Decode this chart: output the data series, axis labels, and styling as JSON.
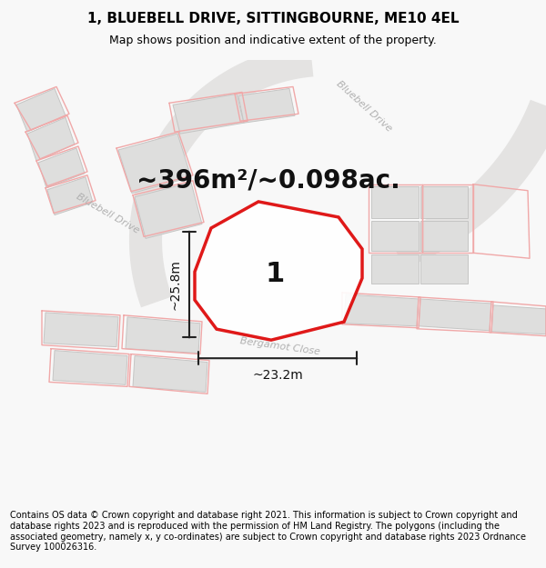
{
  "title": "1, BLUEBELL DRIVE, SITTINGBOURNE, ME10 4EL",
  "subtitle": "Map shows position and indicative extent of the property.",
  "area_text": "~396m²/~0.098ac.",
  "dimension_width": "~23.2m",
  "dimension_height": "~25.8m",
  "property_number": "1",
  "footer": "Contains OS data © Crown copyright and database right 2021. This information is subject to Crown copyright and database rights 2023 and is reproduced with the permission of HM Land Registry. The polygons (including the associated geometry, namely x, y co-ordinates) are subject to Crown copyright and database rights 2023 Ordnance Survey 100026316.",
  "bg_color": "#f8f8f8",
  "map_bg": "#f2f1f0",
  "highlight_color": "#dd0000",
  "plot_line_color": "#f0b0b0",
  "building_fill": "#e0e0e0",
  "building_edge": "#cccccc",
  "road_fill": "#e8e7e6",
  "road_label_color": "#b0b0b0",
  "dim_line_color": "#222222",
  "title_fontsize": 11,
  "subtitle_fontsize": 9,
  "area_fontsize": 20,
  "dim_fontsize": 10,
  "footer_fontsize": 7.0,
  "prop_pts_x": [
    248,
    278,
    322,
    378,
    392,
    388,
    345,
    258
  ],
  "prop_pts_y": [
    298,
    330,
    342,
    332,
    288,
    248,
    228,
    248
  ]
}
